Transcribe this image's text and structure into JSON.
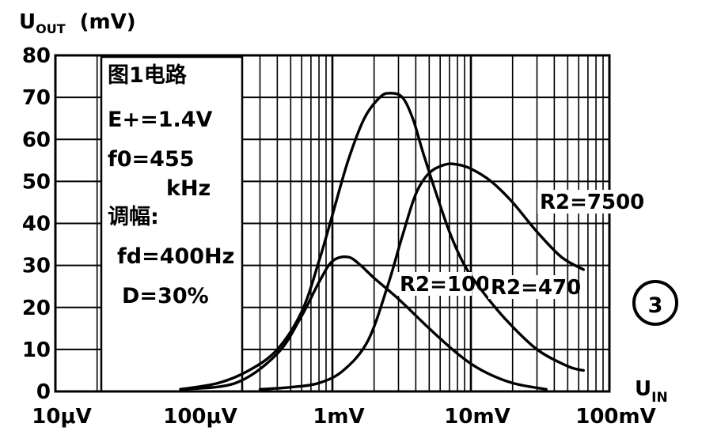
{
  "chart_data": {
    "type": "line",
    "x_scale": "log",
    "y_axis_label": "U",
    "y_axis_label_sub": "OUT",
    "y_axis_unit": "(mV)",
    "x_axis_label": "U",
    "x_axis_label_sub": "IN",
    "y_ticks": [
      "0",
      "10",
      "20",
      "30",
      "40",
      "50",
      "60",
      "70",
      "80"
    ],
    "y_tick_values": [
      0,
      10,
      20,
      30,
      40,
      50,
      60,
      70,
      80
    ],
    "x_ticks": [
      "10μV",
      "100μV",
      "1mV",
      "10mV",
      "100mV"
    ],
    "x_tick_values_mV": [
      0.01,
      0.1,
      1,
      10,
      100
    ],
    "xlim_mV": [
      0.01,
      100
    ],
    "ylim": [
      0,
      80
    ],
    "grid": true,
    "note_lines": [
      "图1电路",
      "E+=1.4V",
      "f0=455",
      "kHz",
      "调幅:",
      "fd=400Hz",
      "D=30%"
    ],
    "figure_number": "3",
    "series": [
      {
        "name": "R2=100",
        "x_mV": [
          0.08,
          0.2,
          0.4,
          0.6,
          0.8,
          1.0,
          1.3,
          1.6,
          2.0,
          3.0,
          5.0,
          8.0,
          12.0,
          20.0,
          35.0
        ],
        "y": [
          0.5,
          2,
          9,
          18,
          26,
          31,
          32,
          30,
          27,
          22,
          15,
          9,
          5,
          2,
          0.5
        ]
      },
      {
        "name": "R2=470",
        "x_mV": [
          0.08,
          0.15,
          0.25,
          0.4,
          0.6,
          0.8,
          1.0,
          1.3,
          1.7,
          2.2,
          2.6,
          3.2,
          3.8,
          4.5,
          5.5,
          7.0,
          9.0,
          12.0,
          18.0,
          30.0,
          50.0,
          65.0
        ],
        "y": [
          0.5,
          2,
          5,
          10,
          19,
          31,
          42,
          55,
          65,
          70,
          71,
          70,
          65,
          57,
          48,
          38,
          30,
          24,
          17,
          10,
          6,
          5
        ]
      },
      {
        "name": "R2=7500",
        "x_mV": [
          0.3,
          0.5,
          0.8,
          1.2,
          1.8,
          2.5,
          3.2,
          4.0,
          5.0,
          6.5,
          8.0,
          10.0,
          14.0,
          20.0,
          30.0,
          45.0,
          65.0
        ],
        "y": [
          0.5,
          1,
          2,
          5,
          12,
          25,
          37,
          47,
          52,
          54,
          54,
          53,
          50,
          45,
          38,
          32,
          29
        ]
      }
    ],
    "curve_labels": [
      "R2=100",
      "R2=470",
      "R2=7500"
    ]
  }
}
